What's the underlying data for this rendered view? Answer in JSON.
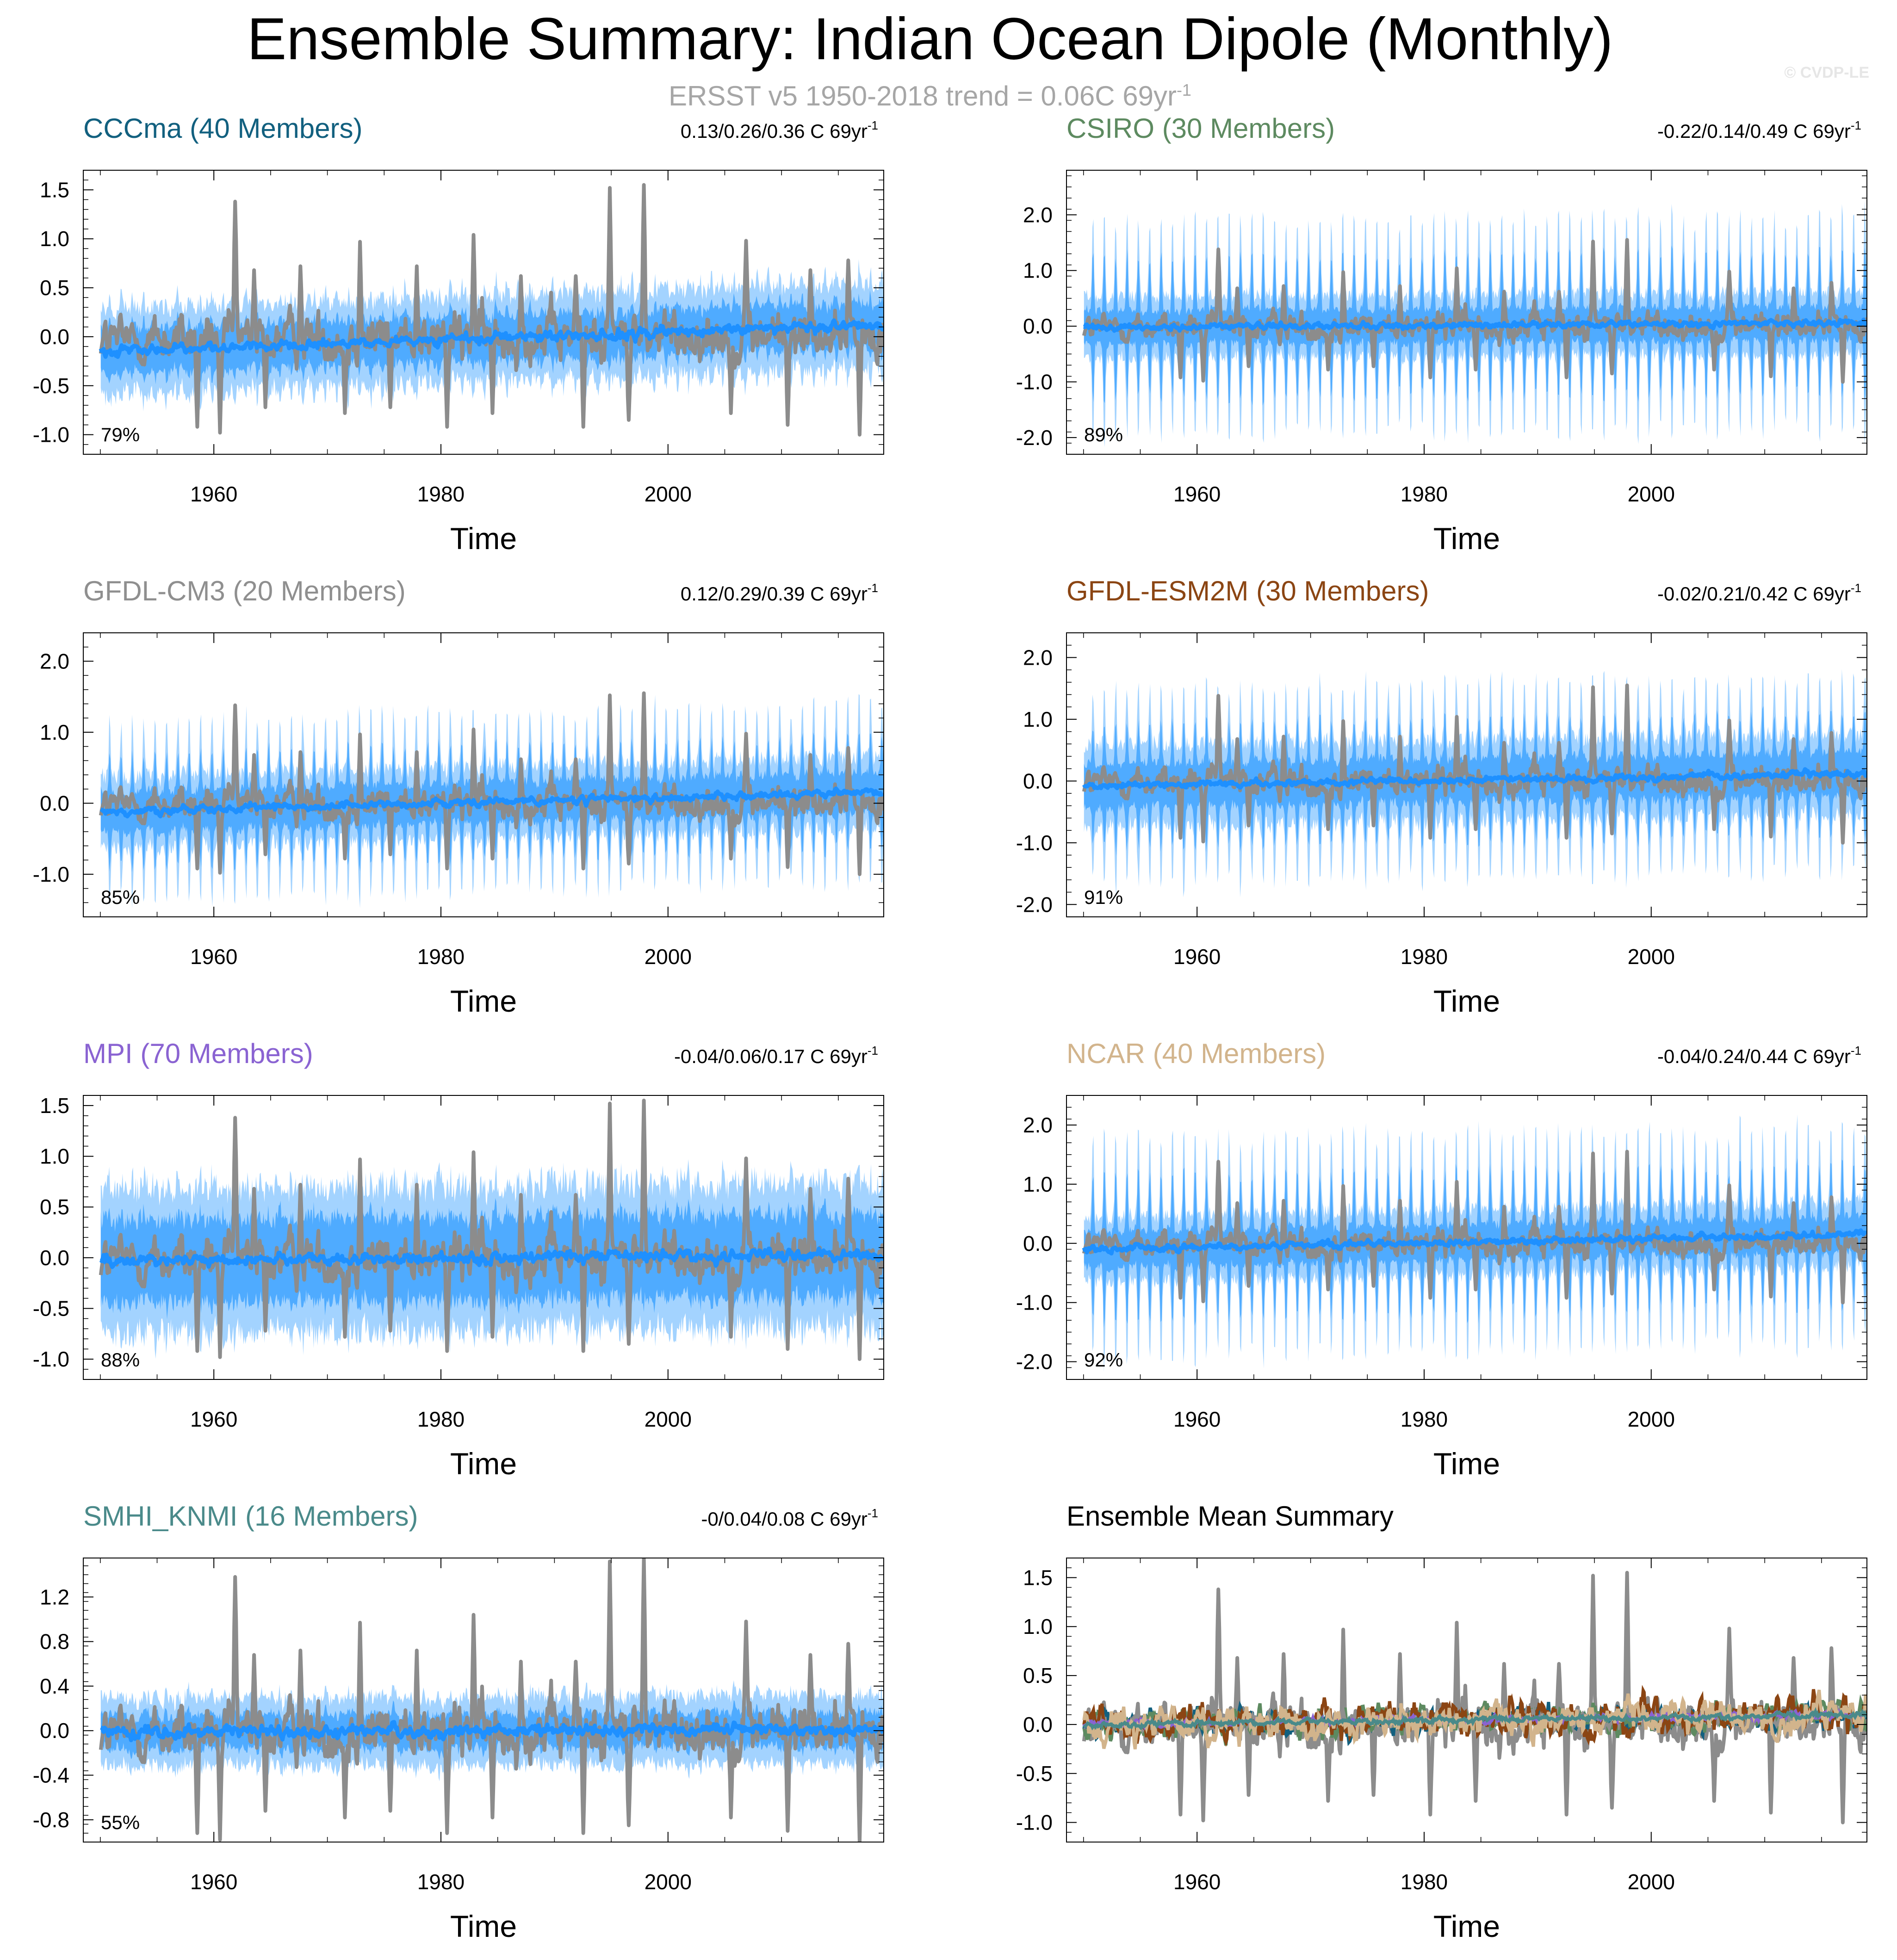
{
  "title": "Ensemble Summary: Indian Ocean Dipole (Monthly)",
  "subtitle": {
    "text": "ERSST v5 1950-2018 trend = 0.06C 69yr",
    "sup": "-1"
  },
  "credit": "© CVDP-LE",
  "colors": {
    "observed": "#8c8c8c",
    "ens_mean": "#1e90ff",
    "spread_outer": "#a3d3ff",
    "spread_inner": "#4fabff",
    "CCCma": "#12607f",
    "CSIRO": "#5d8a60",
    "GFDL-CM3": "#8f8f8f",
    "GFDL-ESM2M": "#8b4513",
    "MPI": "#8a63d2",
    "NCAR": "#d2b48c",
    "SMHI_KNMI": "#4a8a8a"
  },
  "chart_data": [
    {
      "type": "line",
      "id": "cccma",
      "title": "CCCma (40 Members)",
      "title_color": "#12607f",
      "trend": "0.13/0.26/0.36 C 69yr",
      "trend_sup": "-1",
      "percent": "79%",
      "xlabel": "Time",
      "x_range": [
        1948.5,
        2019
      ],
      "xticks": [
        1960,
        1980,
        2000
      ],
      "xticklabels": [
        "1960",
        "1980",
        "2000"
      ],
      "ylim": [
        -1.2,
        1.7
      ],
      "yticks": [
        -1.0,
        -0.5,
        0.0,
        0.5,
        1.0,
        1.5
      ],
      "yticklabels": [
        "-1.0",
        "-0.5",
        "0.0",
        "0.5",
        "1.0",
        "1.5"
      ],
      "spread_outer": 0.42,
      "spread_inner": 0.22,
      "seasonal_amp": 0.15,
      "mean_trend": [
        -0.15,
        0.12
      ]
    },
    {
      "type": "line",
      "id": "csiro",
      "title": "CSIRO (30 Members)",
      "title_color": "#5d8a60",
      "trend": "-0.22/0.14/0.49 C 69yr",
      "trend_sup": "-1",
      "percent": "89%",
      "xlabel": "Time",
      "x_range": [
        1948.5,
        2019
      ],
      "xticks": [
        1960,
        1980,
        2000
      ],
      "xticklabels": [
        "1960",
        "1980",
        "2000"
      ],
      "ylim": [
        -2.3,
        2.8
      ],
      "yticks": [
        -2.0,
        -1.0,
        0.0,
        1.0,
        2.0
      ],
      "yticklabels": [
        "-2.0",
        "-1.0",
        "0.0",
        "1.0",
        "2.0"
      ],
      "spread_outer": 0.55,
      "spread_inner": 0.3,
      "seasonal_amp": 1.55,
      "mean_trend": [
        -0.02,
        0.06
      ]
    },
    {
      "type": "line",
      "id": "gfdlcm3",
      "title": "GFDL-CM3 (20 Members)",
      "title_color": "#8f8f8f",
      "trend": "0.12/0.29/0.39 C 69yr",
      "trend_sup": "-1",
      "percent": "85%",
      "xlabel": "Time",
      "x_range": [
        1948.5,
        2019
      ],
      "xticks": [
        1960,
        1980,
        2000
      ],
      "xticklabels": [
        "1960",
        "1980",
        "2000"
      ],
      "ylim": [
        -1.6,
        2.4
      ],
      "yticks": [
        -1.0,
        0.0,
        1.0,
        2.0
      ],
      "yticklabels": [
        "-1.0",
        "0.0",
        "1.0",
        "2.0"
      ],
      "spread_outer": 0.5,
      "spread_inner": 0.28,
      "seasonal_amp": 0.85,
      "mean_trend": [
        -0.12,
        0.15
      ]
    },
    {
      "type": "line",
      "id": "gfdlesm2m",
      "title": "GFDL-ESM2M (30 Members)",
      "title_color": "#8b4513",
      "trend": "-0.02/0.21/0.42 C 69yr",
      "trend_sup": "-1",
      "percent": "91%",
      "xlabel": "Time",
      "x_range": [
        1948.5,
        2019
      ],
      "xticks": [
        1960,
        1980,
        2000
      ],
      "xticklabels": [
        "1960",
        "1980",
        "2000"
      ],
      "ylim": [
        -2.2,
        2.4
      ],
      "yticks": [
        -2.0,
        -1.0,
        0.0,
        1.0,
        2.0
      ],
      "yticklabels": [
        "-2.0",
        "-1.0",
        "0.0",
        "1.0",
        "2.0"
      ],
      "spread_outer": 0.65,
      "spread_inner": 0.35,
      "seasonal_amp": 1.05,
      "mean_trend": [
        -0.08,
        0.12
      ]
    },
    {
      "type": "line",
      "id": "mpi",
      "title": "MPI (70 Members)",
      "title_color": "#8a63d2",
      "trend": "-0.04/0.06/0.17 C 69yr",
      "trend_sup": "-1",
      "percent": "88%",
      "xlabel": "Time",
      "x_range": [
        1948.5,
        2019
      ],
      "xticks": [
        1960,
        1980,
        2000
      ],
      "xticklabels": [
        "1960",
        "1980",
        "2000"
      ],
      "ylim": [
        -1.2,
        1.6
      ],
      "yticks": [
        -1.0,
        -0.5,
        0.0,
        0.5,
        1.0,
        1.5
      ],
      "yticklabels": [
        "-1.0",
        "-0.5",
        "0.0",
        "0.5",
        "1.0",
        "1.5"
      ],
      "spread_outer": 0.7,
      "spread_inner": 0.4,
      "seasonal_amp": 0.1,
      "mean_trend": [
        -0.03,
        0.03
      ]
    },
    {
      "type": "line",
      "id": "ncar",
      "title": "NCAR (40 Members)",
      "title_color": "#d2b48c",
      "trend": "-0.04/0.24/0.44 C 69yr",
      "trend_sup": "-1",
      "percent": "92%",
      "xlabel": "Time",
      "x_range": [
        1948.5,
        2019
      ],
      "xticks": [
        1960,
        1980,
        2000
      ],
      "xticklabels": [
        "1960",
        "1980",
        "2000"
      ],
      "ylim": [
        -2.3,
        2.5
      ],
      "yticks": [
        -2.0,
        -1.0,
        0.0,
        1.0,
        2.0
      ],
      "yticklabels": [
        "-2.0",
        "-1.0",
        "0.0",
        "1.0",
        "2.0"
      ],
      "spread_outer": 0.55,
      "spread_inner": 0.3,
      "seasonal_amp": 1.45,
      "mean_trend": [
        -0.1,
        0.15
      ]
    },
    {
      "type": "line",
      "id": "smhi",
      "title": "SMHI_KNMI (16 Members)",
      "title_color": "#4a8a8a",
      "trend": "-0/0.04/0.08 C 69yr",
      "trend_sup": "-1",
      "percent": "55%",
      "xlabel": "Time",
      "x_range": [
        1948.5,
        2019
      ],
      "xticks": [
        1960,
        1980,
        2000
      ],
      "xticklabels": [
        "1960",
        "1980",
        "2000"
      ],
      "ylim": [
        -1.0,
        1.55
      ],
      "yticks": [
        -0.8,
        -0.4,
        0.0,
        0.4,
        0.8,
        1.2
      ],
      "yticklabels": [
        "-0.8",
        "-0.4",
        "0.0",
        "0.4",
        "0.8",
        "1.2"
      ],
      "spread_outer": 0.3,
      "spread_inner": 0.15,
      "seasonal_amp": 0.05,
      "mean_trend": [
        -0.02,
        0.02
      ]
    },
    {
      "type": "line",
      "id": "summary",
      "title": "Ensemble Mean Summary",
      "title_color": "#000000",
      "trend": "",
      "trend_sup": "",
      "percent": "",
      "xlabel": "Time",
      "x_range": [
        1948.5,
        2019
      ],
      "xticks": [
        1960,
        1980,
        2000
      ],
      "xticklabels": [
        "1960",
        "1980",
        "2000"
      ],
      "ylim": [
        -1.2,
        1.7
      ],
      "yticks": [
        -1.0,
        -0.5,
        0.0,
        0.5,
        1.0,
        1.5
      ],
      "yticklabels": [
        "-1.0",
        "-0.5",
        "0.0",
        "0.5",
        "1.0",
        "1.5"
      ],
      "summary": true
    }
  ],
  "observed_peaks": [
    {
      "year": 1961.8,
      "value": 1.38
    },
    {
      "year": 1963.5,
      "value": 0.68
    },
    {
      "year": 1967.6,
      "value": 0.72
    },
    {
      "year": 1972.8,
      "value": 0.97
    },
    {
      "year": 1977.8,
      "value": 0.72
    },
    {
      "year": 1982.8,
      "value": 1.04
    },
    {
      "year": 1987.0,
      "value": 0.62
    },
    {
      "year": 1991.8,
      "value": 0.62
    },
    {
      "year": 1994.8,
      "value": 1.52
    },
    {
      "year": 1997.8,
      "value": 1.55
    },
    {
      "year": 2006.8,
      "value": 0.98
    },
    {
      "year": 2012.5,
      "value": 0.68
    },
    {
      "year": 2015.8,
      "value": 0.78
    }
  ],
  "observed_troughs": [
    {
      "year": 1958.5,
      "value": -0.92
    },
    {
      "year": 1960.5,
      "value": -0.98
    },
    {
      "year": 1964.5,
      "value": -0.72
    },
    {
      "year": 1971.5,
      "value": -0.78
    },
    {
      "year": 1975.5,
      "value": -0.72
    },
    {
      "year": 1980.5,
      "value": -0.92
    },
    {
      "year": 1984.5,
      "value": -0.78
    },
    {
      "year": 1992.5,
      "value": -0.92
    },
    {
      "year": 1996.5,
      "value": -0.85
    },
    {
      "year": 2005.5,
      "value": -0.78
    },
    {
      "year": 2010.5,
      "value": -0.9
    },
    {
      "year": 2016.8,
      "value": -1.0
    }
  ]
}
